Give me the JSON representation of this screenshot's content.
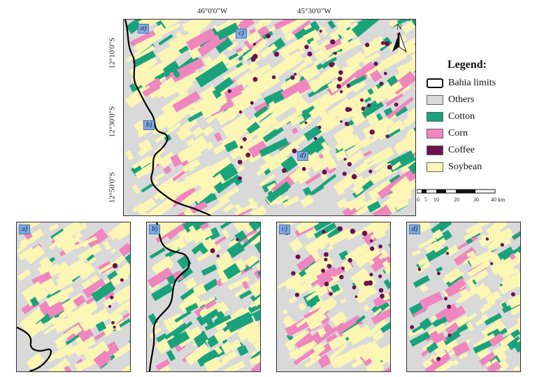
{
  "coords": {
    "lon_left": "46°0'0\"W",
    "lon_right": "45°30'0\"W",
    "lat_top": "12°10'0\"S",
    "lat_mid": "12°30'0\"S",
    "lat_bottom": "12°50'0\"S"
  },
  "panels": {
    "a": "a)",
    "b": "b)",
    "c": "c)",
    "d": "d)"
  },
  "north_arrow": {
    "label": "N"
  },
  "legend": {
    "title": "Legend:",
    "items": [
      {
        "label": "Bahia limits",
        "color": "#ffffff",
        "kind": "outline"
      },
      {
        "label": "Others",
        "color": "#d9d9d9",
        "kind": "fill"
      },
      {
        "label": "Cotton",
        "color": "#1aa37a",
        "kind": "fill"
      },
      {
        "label": "Corn",
        "color": "#ef86be",
        "kind": "fill"
      },
      {
        "label": "Coffee",
        "color": "#6b1150",
        "kind": "fill"
      },
      {
        "label": "Soybean",
        "color": "#fbf6b4",
        "kind": "fill"
      }
    ]
  },
  "scale_bar": {
    "ticks": [
      "0",
      "5",
      "10",
      "20",
      "30",
      "40 km"
    ]
  },
  "colors": {
    "others": "#d9d9d9",
    "cotton": "#1aa37a",
    "corn": "#ef86be",
    "coffee": "#6b1150",
    "soybean": "#fbf6b4",
    "panel_label_bg": "#7fa9e0"
  }
}
